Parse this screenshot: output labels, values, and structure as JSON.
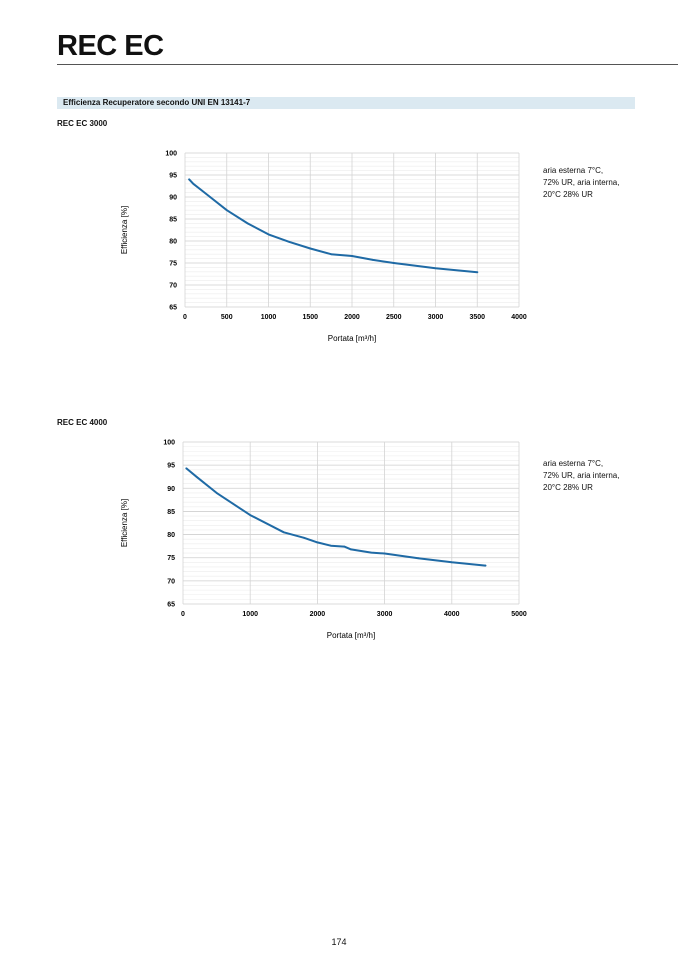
{
  "header": {
    "title": "REC EC"
  },
  "section": {
    "title": "Efficienza Recuperatore secondo UNI EN 13141-7"
  },
  "page_number": "174",
  "chart_data": [
    {
      "type": "line",
      "subtitle": "REC EC 3000",
      "xlabel": "Portata [m³/h]",
      "ylabel": "Efficienza [%]",
      "xlim": [
        0,
        4000
      ],
      "ylim": [
        65,
        100
      ],
      "xticks": [
        0,
        500,
        1000,
        1500,
        2000,
        2500,
        3000,
        3500,
        4000
      ],
      "yticks": [
        65,
        70,
        75,
        80,
        85,
        90,
        95,
        100
      ],
      "grid": true,
      "color": "#1f6aa5",
      "note": [
        "aria esterna 7°C,",
        "72% UR, aria interna,",
        "20°C 28% UR"
      ],
      "x": [
        50,
        100,
        200,
        300,
        500,
        750,
        1000,
        1250,
        1500,
        1750,
        2000,
        2250,
        2500,
        3000,
        3500
      ],
      "y": [
        94,
        93,
        91.5,
        90,
        87,
        84,
        81.5,
        79.8,
        78.3,
        77,
        76.6,
        75.7,
        75,
        73.8,
        72.9
      ]
    },
    {
      "type": "line",
      "subtitle": "REC EC 4000",
      "xlabel": "Portata [m³/h]",
      "ylabel": "Efficienza [%]",
      "xlim": [
        0,
        5000
      ],
      "ylim": [
        65,
        100
      ],
      "xticks": [
        0,
        1000,
        2000,
        3000,
        4000,
        5000
      ],
      "yticks": [
        65,
        70,
        75,
        80,
        85,
        90,
        95,
        100
      ],
      "grid": true,
      "color": "#1f6aa5",
      "note": [
        "aria esterna 7°C,",
        "72% UR, aria interna,",
        "20°C 28% UR"
      ],
      "x": [
        50,
        200,
        500,
        1000,
        1500,
        1800,
        2000,
        2200,
        2400,
        2500,
        2800,
        3000,
        3500,
        4000,
        4500
      ],
      "y": [
        94.3,
        92.5,
        89,
        84.2,
        80.5,
        79.3,
        78.3,
        77.6,
        77.4,
        76.8,
        76.1,
        75.9,
        74.9,
        74,
        73.3
      ]
    }
  ]
}
